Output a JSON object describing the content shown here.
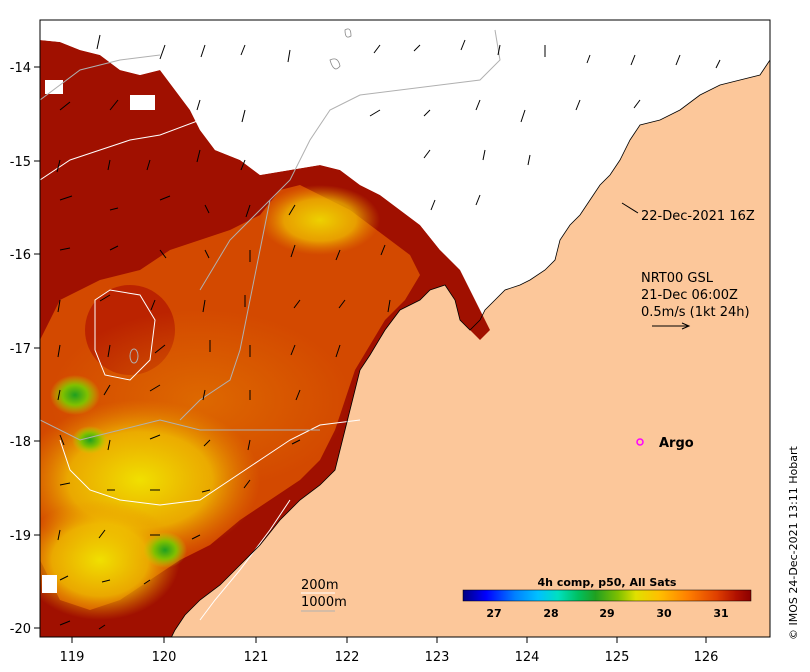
{
  "map": {
    "x_ticks": [
      "119",
      "120",
      "121",
      "122",
      "123",
      "124",
      "125",
      "126"
    ],
    "y_ticks": [
      "-14",
      "-15",
      "-16",
      "-17",
      "-18",
      "-19",
      "-20"
    ],
    "lon_range": [
      118.6,
      126.8
    ],
    "lat_range": [
      -20.1,
      -13.4
    ]
  },
  "annotations": {
    "timestamp": "22-Dec-2021 16Z",
    "current_model": "NRT00 GSL",
    "current_time": "21-Dec 06:00Z",
    "current_scale": "0.5m/s (1kt 24h)",
    "argo_label": "Argo",
    "iso_200": "200m",
    "iso_1000": "1000m"
  },
  "colorbar": {
    "title": "4h comp, p50, All Sats",
    "ticks": [
      "27",
      "28",
      "29",
      "30",
      "31"
    ],
    "range": [
      26.6,
      31.4
    ],
    "colors": [
      "#000080",
      "#0000ff",
      "#0080ff",
      "#00c0ff",
      "#00e0c0",
      "#00c060",
      "#20a020",
      "#80c000",
      "#e0e000",
      "#ffc000",
      "#ff8000",
      "#e04000",
      "#b01000",
      "#8b0000"
    ]
  },
  "credit": "© IMOS 24-Dec-2021 13:11 Hobart",
  "colors": {
    "land": "#fcc79a",
    "sst_warm": "#a01000",
    "argo_marker": "#ff00ff"
  }
}
